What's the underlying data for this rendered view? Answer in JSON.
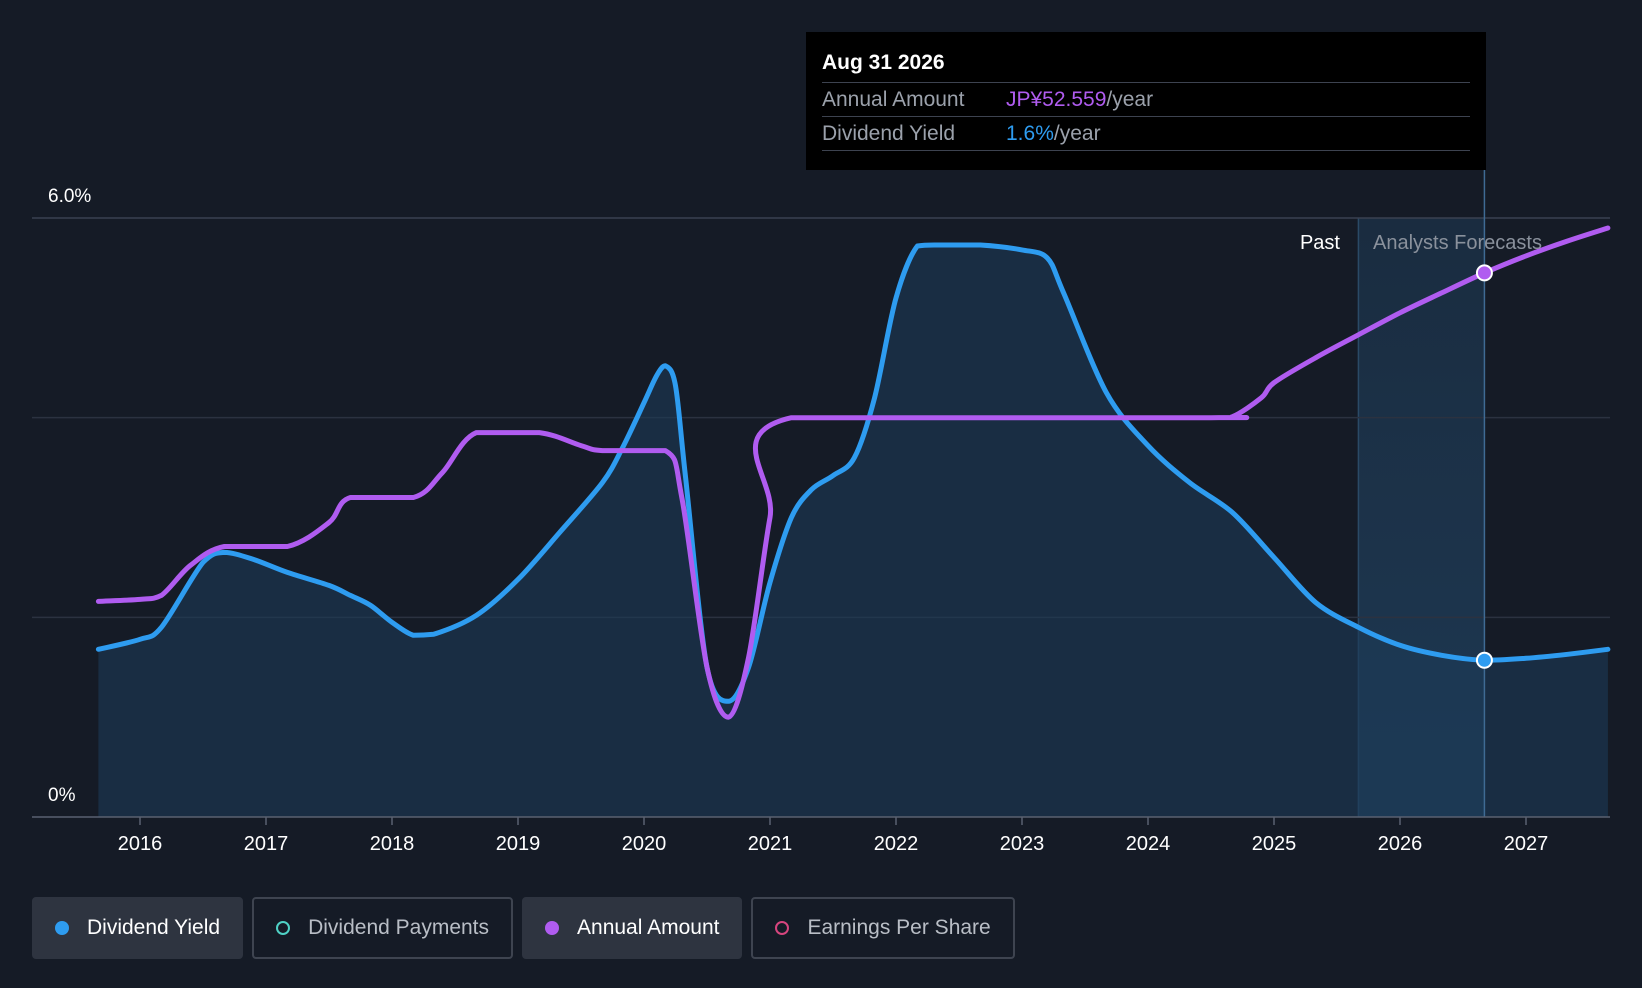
{
  "tooltip": {
    "date": "Aug 31 2026",
    "rows": [
      {
        "key": "Annual Amount",
        "value": "JP¥52.559",
        "unit": "/year"
      },
      {
        "key": "Dividend Yield",
        "value": "1.6%",
        "unit": "/year"
      }
    ]
  },
  "regions": {
    "past": "Past",
    "forecast": "Analysts Forecasts"
  },
  "legend": [
    {
      "label": "Dividend Yield",
      "active": true,
      "color": "#2e9cf0",
      "filled": true
    },
    {
      "label": "Dividend Payments",
      "active": false,
      "color": "#4fd1c5",
      "filled": false
    },
    {
      "label": "Annual Amount",
      "active": true,
      "color": "#b05cf0",
      "filled": true
    },
    {
      "label": "Earnings Per Share",
      "active": false,
      "color": "#d6457e",
      "filled": false
    }
  ],
  "chart_data": {
    "type": "line",
    "y_labels": [
      "6.0%",
      "0%"
    ],
    "ylim": [
      0,
      6.0
    ],
    "xlim": [
      2015.65,
      2027.65
    ],
    "x_ticks": [
      "2016",
      "2017",
      "2018",
      "2019",
      "2020",
      "2021",
      "2022",
      "2023",
      "2024",
      "2025",
      "2026",
      "2027"
    ],
    "forecast_start": 2025.67,
    "highlight_x": 2026.67,
    "series": [
      {
        "name": "Dividend Yield",
        "color": "#2e9cf0",
        "fill": true,
        "unit": "%",
        "points": [
          [
            2015.67,
            1.68
          ],
          [
            2016.0,
            1.78
          ],
          [
            2016.17,
            1.9
          ],
          [
            2016.5,
            2.55
          ],
          [
            2016.67,
            2.65
          ],
          [
            2016.9,
            2.58
          ],
          [
            2017.17,
            2.45
          ],
          [
            2017.5,
            2.32
          ],
          [
            2017.67,
            2.22
          ],
          [
            2017.83,
            2.12
          ],
          [
            2018.0,
            1.95
          ],
          [
            2018.17,
            1.82
          ],
          [
            2018.33,
            1.83
          ],
          [
            2018.67,
            2.02
          ],
          [
            2019.0,
            2.38
          ],
          [
            2019.33,
            2.85
          ],
          [
            2019.67,
            3.35
          ],
          [
            2019.83,
            3.7
          ],
          [
            2020.0,
            4.15
          ],
          [
            2020.1,
            4.42
          ],
          [
            2020.17,
            4.52
          ],
          [
            2020.25,
            4.32
          ],
          [
            2020.33,
            3.4
          ],
          [
            2020.5,
            1.5
          ],
          [
            2020.67,
            1.16
          ],
          [
            2020.83,
            1.5
          ],
          [
            2021.0,
            2.35
          ],
          [
            2021.17,
            3.0
          ],
          [
            2021.33,
            3.28
          ],
          [
            2021.5,
            3.42
          ],
          [
            2021.67,
            3.6
          ],
          [
            2021.83,
            4.2
          ],
          [
            2022.0,
            5.2
          ],
          [
            2022.17,
            5.72
          ],
          [
            2022.33,
            5.73
          ],
          [
            2022.67,
            5.73
          ],
          [
            2023.0,
            5.68
          ],
          [
            2023.2,
            5.6
          ],
          [
            2023.33,
            5.25
          ],
          [
            2023.67,
            4.25
          ],
          [
            2024.0,
            3.72
          ],
          [
            2024.33,
            3.35
          ],
          [
            2024.67,
            3.05
          ],
          [
            2025.0,
            2.6
          ],
          [
            2025.33,
            2.15
          ],
          [
            2025.67,
            1.9
          ],
          [
            2026.0,
            1.72
          ],
          [
            2026.33,
            1.62
          ],
          [
            2026.67,
            1.57
          ],
          [
            2027.0,
            1.59
          ],
          [
            2027.33,
            1.63
          ],
          [
            2027.65,
            1.68
          ]
        ]
      },
      {
        "name": "Annual Amount",
        "color": "#b05cf0",
        "fill": false,
        "unit": "JP¥",
        "points": [
          [
            2015.67,
            2.16
          ],
          [
            2016.0,
            2.18
          ],
          [
            2016.17,
            2.22
          ],
          [
            2016.4,
            2.52
          ],
          [
            2016.67,
            2.71
          ],
          [
            2017.17,
            2.71
          ],
          [
            2017.5,
            2.95
          ],
          [
            2017.67,
            3.2
          ],
          [
            2018.17,
            3.2
          ],
          [
            2018.4,
            3.45
          ],
          [
            2018.67,
            3.85
          ],
          [
            2019.17,
            3.85
          ],
          [
            2019.5,
            3.72
          ],
          [
            2019.67,
            3.67
          ],
          [
            2020.17,
            3.67
          ],
          [
            2020.3,
            3.2
          ],
          [
            2020.5,
            1.5
          ],
          [
            2020.67,
            1.0
          ],
          [
            2020.83,
            1.6
          ],
          [
            2021.0,
            3.0
          ],
          [
            2021.17,
            4.0
          ],
          [
            2024.5,
            4.0
          ],
          [
            2024.67,
            4.01
          ],
          [
            2024.9,
            4.2
          ],
          [
            2025.0,
            4.35
          ],
          [
            2025.33,
            4.6
          ],
          [
            2025.67,
            4.83
          ],
          [
            2026.0,
            5.05
          ],
          [
            2026.33,
            5.25
          ],
          [
            2026.67,
            5.45
          ],
          [
            2027.0,
            5.62
          ],
          [
            2027.33,
            5.77
          ],
          [
            2027.65,
            5.9
          ]
        ]
      }
    ]
  }
}
